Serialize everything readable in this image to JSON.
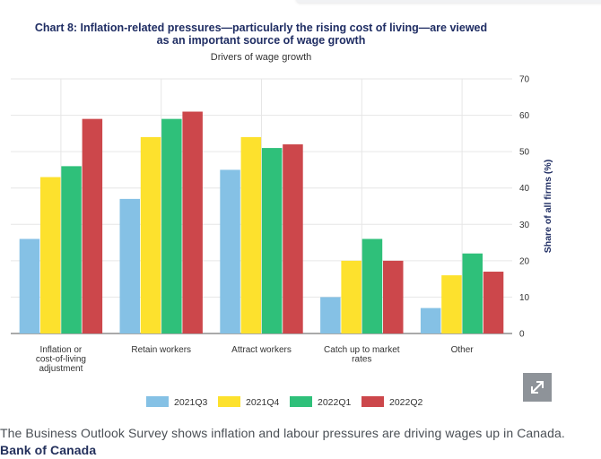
{
  "chart_data": {
    "type": "bar",
    "title_lines": [
      "Chart 8: Inflation-related pressures—particularly the rising cost of living—are viewed",
      "as an important source of wage growth"
    ],
    "subtitle": "Drivers of wage growth",
    "ylabel": "Share of all firms (%)",
    "ylim": [
      0,
      70
    ],
    "yticks": [
      0,
      10,
      20,
      30,
      40,
      50,
      60,
      70
    ],
    "yaxis_side": "right",
    "grid": true,
    "legend_position": "bottom",
    "categories": [
      [
        "Inflation or",
        "cost-of-living",
        "adjustment"
      ],
      [
        "Retain workers"
      ],
      [
        "Attract workers"
      ],
      [
        "Catch up to market",
        "rates"
      ],
      [
        "Other"
      ]
    ],
    "series": [
      {
        "name": "2021Q3",
        "color": "#85c1e5",
        "values": [
          26,
          37,
          45,
          10,
          7
        ]
      },
      {
        "name": "2021Q4",
        "color": "#fde12d",
        "values": [
          43,
          54,
          54,
          20,
          16
        ]
      },
      {
        "name": "2022Q1",
        "color": "#2fc07a",
        "values": [
          46,
          59,
          51,
          26,
          22
        ]
      },
      {
        "name": "2022Q2",
        "color": "#cc474b",
        "values": [
          59,
          61,
          52,
          20,
          17
        ]
      }
    ]
  },
  "expand_button": {
    "icon": "expand-icon",
    "label": "Expand chart"
  },
  "caption": {
    "text": "The Business Outlook Survey shows inflation and labour pressures are driving wages up in Canada. ",
    "source": "Bank of Canada"
  }
}
